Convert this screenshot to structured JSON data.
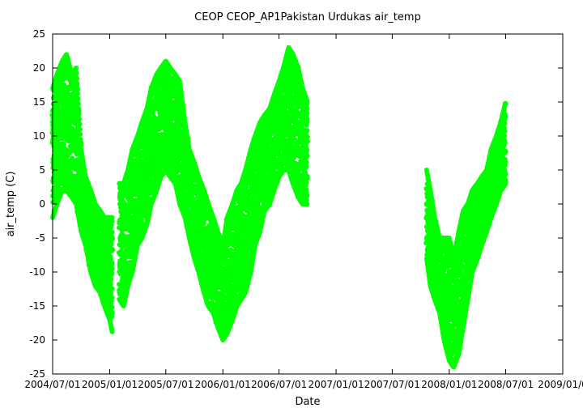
{
  "chart_data": {
    "type": "scatter",
    "title": "CEOP CEOP_AP1Pakistan Urdukas  air_temp",
    "xlabel": "Date",
    "ylabel": "air_temp (C)",
    "ylim": [
      -25,
      25
    ],
    "xlim": [
      "2004-07-01",
      "2009-01-01"
    ],
    "grid": false,
    "legend": "none",
    "y_ticks": [
      -25,
      -20,
      -15,
      -10,
      -5,
      0,
      5,
      10,
      15,
      20,
      25
    ],
    "x_ticks": [
      {
        "date": "2004-07-01",
        "label": "2004/07/01"
      },
      {
        "date": "2005-01-01",
        "label": "2005/01/01"
      },
      {
        "date": "2005-07-01",
        "label": "2005/07/01"
      },
      {
        "date": "2006-01-01",
        "label": "2006/01/01"
      },
      {
        "date": "2006-07-01",
        "label": "2006/07/01"
      },
      {
        "date": "2007-01-01",
        "label": "2007/01/01"
      },
      {
        "date": "2007-07-01",
        "label": "2007/07/01"
      },
      {
        "date": "2008-01-01",
        "label": "2008/01/01"
      },
      {
        "date": "2008-07-01",
        "label": "2008/07/01"
      },
      {
        "date": "2009-01-01",
        "label": "2009/01/0"
      }
    ],
    "colors": {
      "points": "#00ff00"
    },
    "series": [
      {
        "segments": [
          {
            "x": [
              "2004-07-01",
              "2004-07-15",
              "2004-08-01",
              "2004-08-15",
              "2004-09-01",
              "2004-09-15",
              "2004-10-01",
              "2004-10-15",
              "2004-11-01",
              "2004-11-15",
              "2004-12-01",
              "2004-12-15",
              "2005-01-01",
              "2005-01-10"
            ],
            "min": [
              -2,
              0,
              2,
              2,
              1,
              0,
              -4,
              -6,
              -10,
              -12,
              -13,
              -15,
              -17,
              -19
            ],
            "max": [
              17,
              19,
              21,
              22,
              19,
              20,
              8,
              4,
              2,
              0,
              -1,
              -2,
              -2,
              -2
            ]
          },
          {
            "x": [
              "2005-02-01",
              "2005-02-15",
              "2005-03-01",
              "2005-03-15",
              "2005-04-01",
              "2005-04-15",
              "2005-05-01",
              "2005-05-15",
              "2005-06-01",
              "2005-06-15",
              "2005-07-01",
              "2005-07-15",
              "2005-08-01",
              "2005-08-15",
              "2005-09-01",
              "2005-09-15",
              "2005-10-01",
              "2005-10-15",
              "2005-11-01",
              "2005-11-15",
              "2005-12-01",
              "2005-12-15",
              "2006-01-01",
              "2006-01-15",
              "2006-02-01",
              "2006-02-15",
              "2006-03-01",
              "2006-03-15",
              "2006-04-01",
              "2006-04-15",
              "2006-05-01",
              "2006-05-15",
              "2006-06-01",
              "2006-06-15",
              "2006-07-01",
              "2006-07-15",
              "2006-08-01",
              "2006-08-15",
              "2006-09-01",
              "2006-09-15",
              "2006-10-01"
            ],
            "min": [
              -14,
              -15,
              -12,
              -10,
              -6,
              -5,
              -3,
              0,
              2,
              4,
              5,
              4,
              3,
              0,
              -2,
              -5,
              -8,
              -10,
              -13,
              -15,
              -16,
              -18,
              -20,
              -19,
              -17,
              -15,
              -14,
              -13,
              -10,
              -6,
              -4,
              -1,
              0,
              2,
              4,
              5,
              5,
              3,
              1,
              0,
              0
            ],
            "max": [
              3,
              3,
              5,
              8,
              10,
              12,
              14,
              17,
              19,
              20,
              21,
              20,
              19,
              18,
              12,
              8,
              6,
              4,
              2,
              0,
              -2,
              -4,
              -6,
              -2,
              0,
              2,
              3,
              5,
              8,
              10,
              12,
              13,
              14,
              16,
              18,
              20,
              23,
              22,
              20,
              17,
              15
            ]
          },
          {
            "x": [
              "2007-10-20",
              "2007-11-01",
              "2007-11-15",
              "2007-12-01",
              "2007-12-15",
              "2008-01-01",
              "2008-01-15",
              "2008-02-01",
              "2008-02-15",
              "2008-03-01",
              "2008-03-15",
              "2008-04-01",
              "2008-04-15",
              "2008-05-01",
              "2008-05-15",
              "2008-06-01",
              "2008-06-15",
              "2008-07-01"
            ],
            "min": [
              -8,
              -12,
              -14,
              -16,
              -20,
              -23,
              -24,
              -22,
              -18,
              -14,
              -10,
              -8,
              -6,
              -4,
              -2,
              0,
              2,
              3
            ],
            "max": [
              5,
              2,
              -2,
              -5,
              -5,
              -5,
              -8,
              -4,
              -1,
              0,
              2,
              3,
              4,
              5,
              8,
              10,
              12,
              15
            ]
          }
        ]
      }
    ]
  }
}
